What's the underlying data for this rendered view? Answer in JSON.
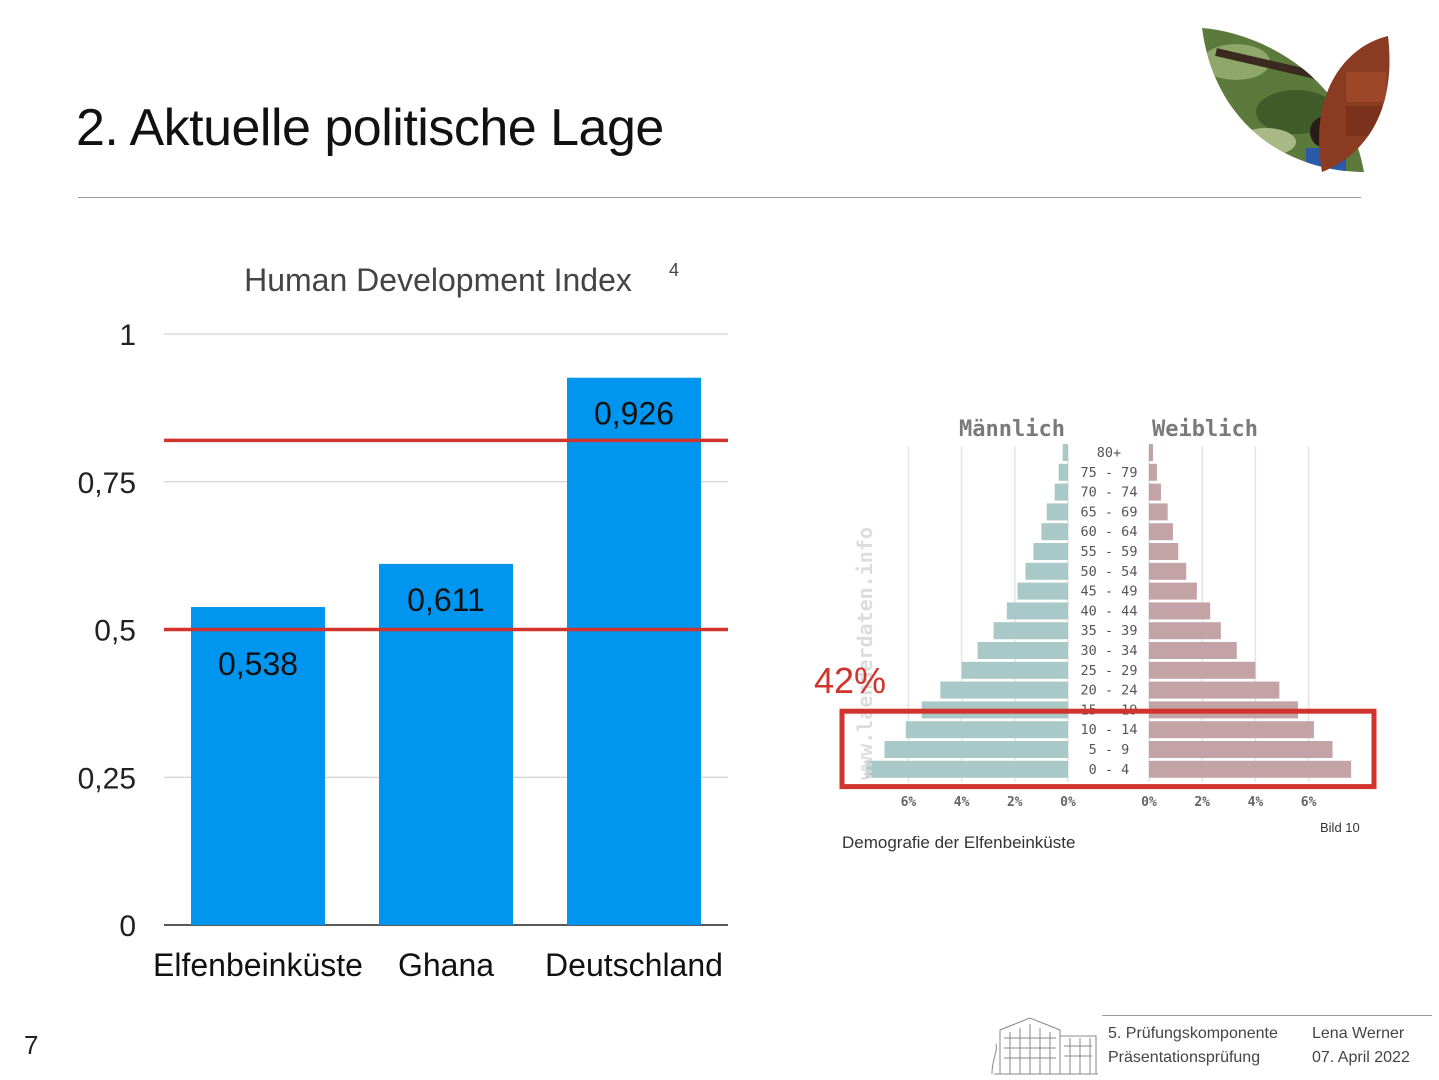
{
  "slide": {
    "title": "2. Aktuelle politische Lage",
    "page_number": "7"
  },
  "chart_data": [
    {
      "type": "bar",
      "title": "Human Development Index",
      "title_footnote": "4",
      "categories": [
        "Elfenbeinküste",
        "Ghana",
        "Deutschland"
      ],
      "values": [
        0.538,
        0.611,
        0.926
      ],
      "value_labels": [
        "0,538",
        "0,611",
        "0,926"
      ],
      "ylim": [
        0,
        1
      ],
      "yticks": [
        0,
        0.25,
        0.5,
        0.75,
        1
      ],
      "ytick_labels": [
        "0",
        "0,25",
        "0,5",
        "0,75",
        "1"
      ],
      "reference_lines": [
        0.5,
        0.82
      ],
      "grid": true,
      "bar_color": "#0096f0",
      "reference_line_color": "#d0342c"
    },
    {
      "type": "bar",
      "orientation": "horizontal-pyramid",
      "left_label": "Männlich",
      "right_label": "Weiblich",
      "categories": [
        "80+",
        "75 - 79",
        "70 - 74",
        "65 - 69",
        "60 - 64",
        "55 - 59",
        "50 - 54",
        "45 - 49",
        "40 - 44",
        "35 - 39",
        "30 - 34",
        "25 - 29",
        "20 - 24",
        "15 - 19",
        "10 - 14",
        "5 - 9",
        "0 - 4"
      ],
      "series": [
        {
          "name": "Männlich",
          "values": [
            0.2,
            0.35,
            0.5,
            0.8,
            1.0,
            1.3,
            1.6,
            1.9,
            2.3,
            2.8,
            3.4,
            4.0,
            4.8,
            5.5,
            6.1,
            6.9,
            7.6
          ]
        },
        {
          "name": "Weiblich",
          "values": [
            0.15,
            0.3,
            0.45,
            0.7,
            0.9,
            1.1,
            1.4,
            1.8,
            2.3,
            2.7,
            3.3,
            4.0,
            4.9,
            5.6,
            6.2,
            6.9,
            7.6
          ]
        }
      ],
      "xticks": [
        0,
        2,
        4,
        6
      ],
      "xtick_labels_left": [
        "6%",
        "4%",
        "2%",
        "0%"
      ],
      "xtick_labels_right": [
        "0%",
        "2%",
        "4%",
        "6%"
      ],
      "xlim": [
        0,
        8
      ],
      "watermark": "www.laenderdaten.info",
      "highlight_rows": [
        "10 - 14",
        "5 - 9",
        "0 - 4"
      ],
      "highlight_label": "42%",
      "caption": "Demografie der Elfenbeinküste",
      "credit": "Bild 10",
      "male_color": "#a9c8c8",
      "female_color": "#c4a3a6",
      "highlight_color": "#d0342c"
    }
  ],
  "footer": {
    "line1_left": "5. Prüfungskomponente",
    "line2_left": "Präsentationsprüfung",
    "line1_right": "Lena Werner",
    "line2_right": "07. April 2022"
  }
}
